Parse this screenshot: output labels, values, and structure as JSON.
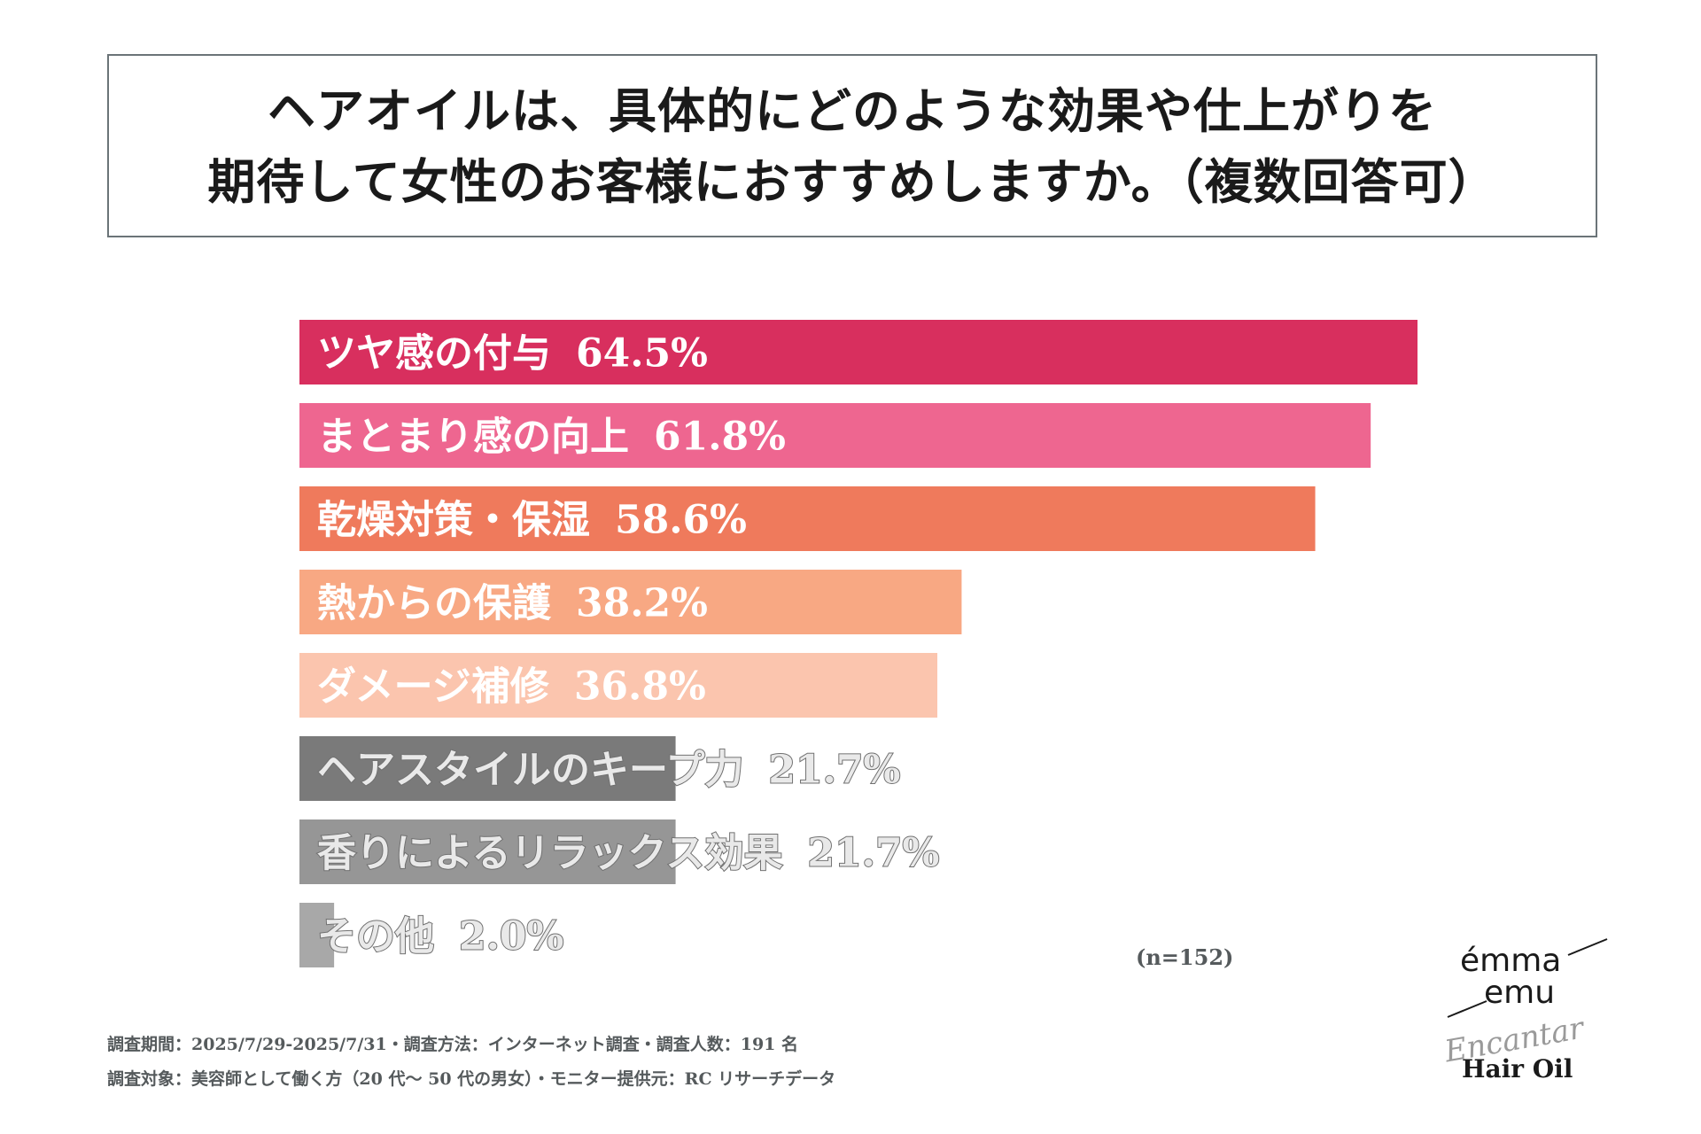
{
  "title": {
    "line1": "ヘアオイルは、具体的にどのような効果や仕上がりを",
    "line2": "期待して女性のお客様におすすめしますか。（複数回答可）"
  },
  "chart_data": {
    "type": "bar",
    "orientation": "horizontal",
    "unit": "%",
    "xlim": [
      0,
      64.5
    ],
    "categories": [
      "ツヤ感の付与",
      "まとまり感の向上",
      "乾燥対策・保湿",
      "熱からの保護",
      "ダメージ補修",
      "ヘアスタイルのキープ力",
      "香りによるリラックス効果",
      "その他"
    ],
    "values": [
      64.5,
      61.8,
      58.6,
      38.2,
      36.8,
      21.7,
      21.7,
      2.0
    ],
    "value_labels": [
      "64.5%",
      "61.8%",
      "58.6%",
      "38.2%",
      "36.8%",
      "21.7%",
      "21.7%",
      "2.0%"
    ],
    "colors": [
      "#d82f5e",
      "#ee6690",
      "#ef7a5c",
      "#f8a883",
      "#fbc5ae",
      "#7a7a7a",
      "#969696",
      "#a8a8a8"
    ]
  },
  "sample_note": "(n=152)",
  "footnotes": {
    "line1": "調査期間：2025/7/29-2025/7/31・調査方法：インターネット調査・調査人数：191 名",
    "line2": "調査対象：美容師として働く方（20 代～ 50 代の男女）・モニター提供元：RC リサーチデータ"
  },
  "logo": {
    "brand_line1": "émma",
    "brand_line2": "emu",
    "script": "Encantar",
    "product": "Hair Oil"
  }
}
